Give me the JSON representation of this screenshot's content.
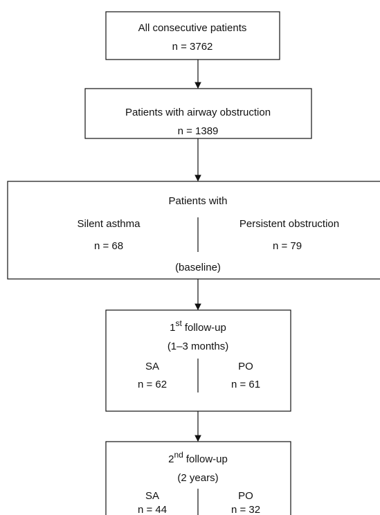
{
  "nodes": [
    {
      "title": "All consecutive patients",
      "n": "n = 3762"
    },
    {
      "title": "Patients with airway obstruction",
      "n": "n = 1389"
    },
    {
      "title": "Patients with",
      "groups": [
        {
          "label": "Silent asthma",
          "n": "n = 68"
        },
        {
          "label": "Persistent obstruction",
          "n": "n = 79"
        }
      ],
      "note": "(baseline)"
    },
    {
      "title": {
        "number": "1",
        "sup": "st",
        "text": "follow-up"
      },
      "note": "(1–3 months)",
      "groups": [
        {
          "label": "SA",
          "n": "n = 62"
        },
        {
          "label": "PO",
          "n": "n = 61"
        }
      ]
    },
    {
      "title": {
        "number": "2",
        "sup": "nd",
        "text": "follow-up"
      },
      "note": "(2 years)",
      "groups": [
        {
          "label": "SA",
          "n": "n = 44"
        },
        {
          "label": "PO",
          "n": "n = 32"
        }
      ]
    }
  ]
}
